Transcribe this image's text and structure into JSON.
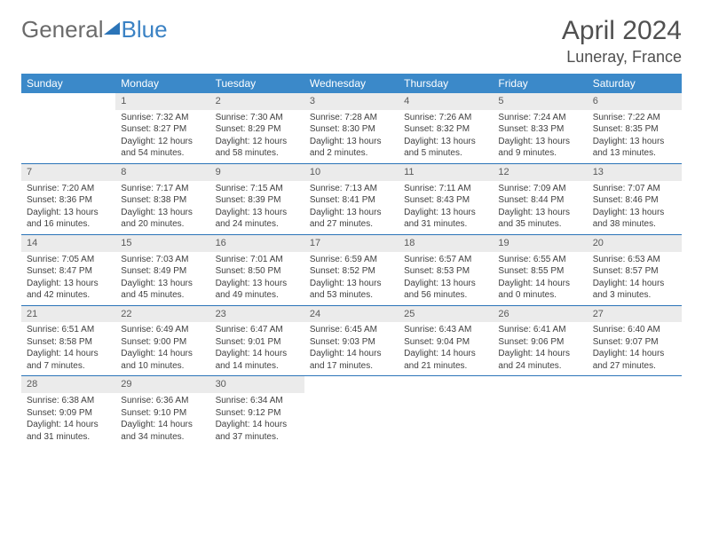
{
  "logo": {
    "general": "General",
    "blue": "Blue"
  },
  "title": "April 2024",
  "location": "Luneray, France",
  "weekdays": [
    "Sunday",
    "Monday",
    "Tuesday",
    "Wednesday",
    "Thursday",
    "Friday",
    "Saturday"
  ],
  "colors": {
    "header_bg": "#3b89c9",
    "header_text": "#ffffff",
    "divider": "#2b74b8",
    "daynum_bg": "#ebebeb",
    "text": "#404040",
    "logo_gray": "#6b6b6b",
    "logo_blue": "#3b82c4"
  },
  "weeks": [
    [
      {
        "empty": true
      },
      {
        "num": "1",
        "sunrise": "Sunrise: 7:32 AM",
        "sunset": "Sunset: 8:27 PM",
        "daylight": "Daylight: 12 hours and 54 minutes."
      },
      {
        "num": "2",
        "sunrise": "Sunrise: 7:30 AM",
        "sunset": "Sunset: 8:29 PM",
        "daylight": "Daylight: 12 hours and 58 minutes."
      },
      {
        "num": "3",
        "sunrise": "Sunrise: 7:28 AM",
        "sunset": "Sunset: 8:30 PM",
        "daylight": "Daylight: 13 hours and 2 minutes."
      },
      {
        "num": "4",
        "sunrise": "Sunrise: 7:26 AM",
        "sunset": "Sunset: 8:32 PM",
        "daylight": "Daylight: 13 hours and 5 minutes."
      },
      {
        "num": "5",
        "sunrise": "Sunrise: 7:24 AM",
        "sunset": "Sunset: 8:33 PM",
        "daylight": "Daylight: 13 hours and 9 minutes."
      },
      {
        "num": "6",
        "sunrise": "Sunrise: 7:22 AM",
        "sunset": "Sunset: 8:35 PM",
        "daylight": "Daylight: 13 hours and 13 minutes."
      }
    ],
    [
      {
        "num": "7",
        "sunrise": "Sunrise: 7:20 AM",
        "sunset": "Sunset: 8:36 PM",
        "daylight": "Daylight: 13 hours and 16 minutes."
      },
      {
        "num": "8",
        "sunrise": "Sunrise: 7:17 AM",
        "sunset": "Sunset: 8:38 PM",
        "daylight": "Daylight: 13 hours and 20 minutes."
      },
      {
        "num": "9",
        "sunrise": "Sunrise: 7:15 AM",
        "sunset": "Sunset: 8:39 PM",
        "daylight": "Daylight: 13 hours and 24 minutes."
      },
      {
        "num": "10",
        "sunrise": "Sunrise: 7:13 AM",
        "sunset": "Sunset: 8:41 PM",
        "daylight": "Daylight: 13 hours and 27 minutes."
      },
      {
        "num": "11",
        "sunrise": "Sunrise: 7:11 AM",
        "sunset": "Sunset: 8:43 PM",
        "daylight": "Daylight: 13 hours and 31 minutes."
      },
      {
        "num": "12",
        "sunrise": "Sunrise: 7:09 AM",
        "sunset": "Sunset: 8:44 PM",
        "daylight": "Daylight: 13 hours and 35 minutes."
      },
      {
        "num": "13",
        "sunrise": "Sunrise: 7:07 AM",
        "sunset": "Sunset: 8:46 PM",
        "daylight": "Daylight: 13 hours and 38 minutes."
      }
    ],
    [
      {
        "num": "14",
        "sunrise": "Sunrise: 7:05 AM",
        "sunset": "Sunset: 8:47 PM",
        "daylight": "Daylight: 13 hours and 42 minutes."
      },
      {
        "num": "15",
        "sunrise": "Sunrise: 7:03 AM",
        "sunset": "Sunset: 8:49 PM",
        "daylight": "Daylight: 13 hours and 45 minutes."
      },
      {
        "num": "16",
        "sunrise": "Sunrise: 7:01 AM",
        "sunset": "Sunset: 8:50 PM",
        "daylight": "Daylight: 13 hours and 49 minutes."
      },
      {
        "num": "17",
        "sunrise": "Sunrise: 6:59 AM",
        "sunset": "Sunset: 8:52 PM",
        "daylight": "Daylight: 13 hours and 53 minutes."
      },
      {
        "num": "18",
        "sunrise": "Sunrise: 6:57 AM",
        "sunset": "Sunset: 8:53 PM",
        "daylight": "Daylight: 13 hours and 56 minutes."
      },
      {
        "num": "19",
        "sunrise": "Sunrise: 6:55 AM",
        "sunset": "Sunset: 8:55 PM",
        "daylight": "Daylight: 14 hours and 0 minutes."
      },
      {
        "num": "20",
        "sunrise": "Sunrise: 6:53 AM",
        "sunset": "Sunset: 8:57 PM",
        "daylight": "Daylight: 14 hours and 3 minutes."
      }
    ],
    [
      {
        "num": "21",
        "sunrise": "Sunrise: 6:51 AM",
        "sunset": "Sunset: 8:58 PM",
        "daylight": "Daylight: 14 hours and 7 minutes."
      },
      {
        "num": "22",
        "sunrise": "Sunrise: 6:49 AM",
        "sunset": "Sunset: 9:00 PM",
        "daylight": "Daylight: 14 hours and 10 minutes."
      },
      {
        "num": "23",
        "sunrise": "Sunrise: 6:47 AM",
        "sunset": "Sunset: 9:01 PM",
        "daylight": "Daylight: 14 hours and 14 minutes."
      },
      {
        "num": "24",
        "sunrise": "Sunrise: 6:45 AM",
        "sunset": "Sunset: 9:03 PM",
        "daylight": "Daylight: 14 hours and 17 minutes."
      },
      {
        "num": "25",
        "sunrise": "Sunrise: 6:43 AM",
        "sunset": "Sunset: 9:04 PM",
        "daylight": "Daylight: 14 hours and 21 minutes."
      },
      {
        "num": "26",
        "sunrise": "Sunrise: 6:41 AM",
        "sunset": "Sunset: 9:06 PM",
        "daylight": "Daylight: 14 hours and 24 minutes."
      },
      {
        "num": "27",
        "sunrise": "Sunrise: 6:40 AM",
        "sunset": "Sunset: 9:07 PM",
        "daylight": "Daylight: 14 hours and 27 minutes."
      }
    ],
    [
      {
        "num": "28",
        "sunrise": "Sunrise: 6:38 AM",
        "sunset": "Sunset: 9:09 PM",
        "daylight": "Daylight: 14 hours and 31 minutes."
      },
      {
        "num": "29",
        "sunrise": "Sunrise: 6:36 AM",
        "sunset": "Sunset: 9:10 PM",
        "daylight": "Daylight: 14 hours and 34 minutes."
      },
      {
        "num": "30",
        "sunrise": "Sunrise: 6:34 AM",
        "sunset": "Sunset: 9:12 PM",
        "daylight": "Daylight: 14 hours and 37 minutes."
      },
      {
        "empty": true
      },
      {
        "empty": true
      },
      {
        "empty": true
      },
      {
        "empty": true
      }
    ]
  ]
}
